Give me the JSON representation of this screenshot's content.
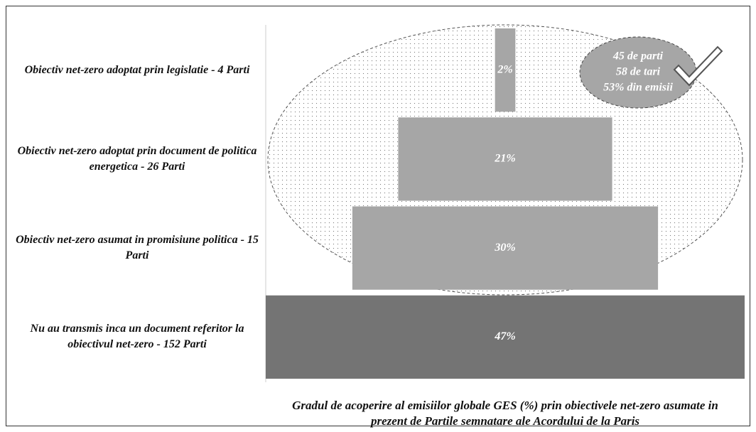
{
  "chart_data": {
    "type": "funnel",
    "categories": [
      "Obiectiv net-zero adoptat prin legislatie - 4 Parti",
      "Obiectiv net-zero adoptat prin document de politica energetica - 26 Parti",
      "Obiectiv net-zero asumat in promisiune politica - 15 Parti",
      "Nu au transmis inca un document referitor la obiectivul net-zero - 152 Parti"
    ],
    "values": [
      2,
      21,
      30,
      47
    ],
    "value_labels": [
      "2%",
      "21%",
      "30%",
      "47%"
    ],
    "colors": [
      "#a6a6a6",
      "#a6a6a6",
      "#a6a6a6",
      "#747474"
    ],
    "xlabel": "Gradul de acoperire al emisiilor globale GES (%) prin obiectivele net-zero asumate in prezent de Partile semnatare ale Acordului de la Paris",
    "annotations": [
      "45 de parti",
      "58 de tari",
      "53% din emisii"
    ]
  }
}
